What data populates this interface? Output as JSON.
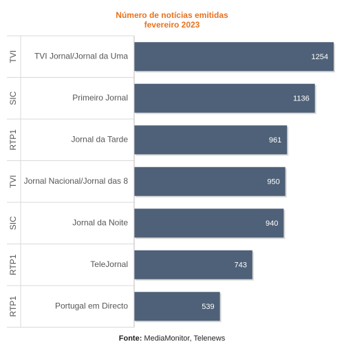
{
  "chart_data": {
    "type": "bar",
    "orientation": "horizontal",
    "title": "Número de notícias emitidas",
    "subtitle": "fevereiro 2023",
    "categories": [
      {
        "channel": "TVI",
        "program": "TVI Jornal/Jornal da Uma"
      },
      {
        "channel": "SIC",
        "program": "Primeiro Jornal"
      },
      {
        "channel": "RTP1",
        "program": "Jornal da Tarde"
      },
      {
        "channel": "TVI",
        "program": "Jornal Nacional/Jornal das 8"
      },
      {
        "channel": "SIC",
        "program": "Jornal da Noite"
      },
      {
        "channel": "RTP1",
        "program": "TeleJornal"
      },
      {
        "channel": "RTP1",
        "program": "Portugal em Directo"
      }
    ],
    "values": [
      1254,
      1136,
      961,
      950,
      940,
      743,
      539
    ],
    "xlim": [
      0,
      1254
    ],
    "bar_color": "#4f6178",
    "grid": false,
    "legend": "none"
  },
  "source": {
    "label": "Fonte:",
    "text": "MediaMonitor, Telenews"
  }
}
